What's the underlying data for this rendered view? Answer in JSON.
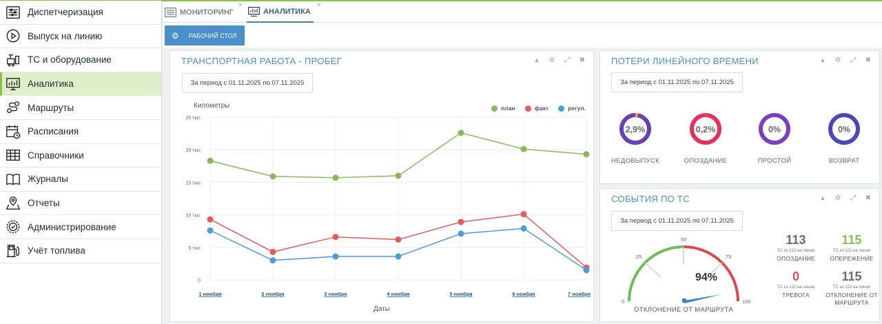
{
  "sidebar": {
    "items": [
      {
        "label": "Диспетчеризация",
        "icon": "dispatch-icon"
      },
      {
        "label": "Выпуск на линию",
        "icon": "play-circle-icon"
      },
      {
        "label": "ТС и оборудование",
        "icon": "vehicle-equipment-icon"
      },
      {
        "label": "Аналитика",
        "icon": "analytics-monitor-icon",
        "active": true
      },
      {
        "label": "Маршруты",
        "icon": "route-icon"
      },
      {
        "label": "Расписания",
        "icon": "calendar-icon"
      },
      {
        "label": "Справочники",
        "icon": "table-grid-icon"
      },
      {
        "label": "Журналы",
        "icon": "book-icon"
      },
      {
        "label": "Отчеты",
        "icon": "map-report-icon"
      },
      {
        "label": "Администрирование",
        "icon": "gear-shield-icon"
      },
      {
        "label": "Учёт топлива",
        "icon": "fuel-pump-icon"
      }
    ]
  },
  "tabs": [
    {
      "label": "МОНИТОРИНГ",
      "close": "×"
    },
    {
      "label": "АНАЛИТИКА",
      "close": "×"
    }
  ],
  "workspace": {
    "button_label": "РАБОЧИЙ СТОЛ"
  },
  "mileage_panel": {
    "title": "ТРАНСПОРТНАЯ РАБОТА - ПРОБЕГ",
    "period": "За период с 01.11.2025 по 07.11.2025",
    "chart_data": {
      "type": "line",
      "ylabel": "Километры",
      "xlabel": "Даты",
      "categories": [
        "1 ноября",
        "2 ноября",
        "3 ноября",
        "4 ноября",
        "5 ноября",
        "6 ноября",
        "7 ноября"
      ],
      "y_ticks": [
        "0",
        "5 тыс",
        "10 тыс",
        "15 тыс",
        "20 тыс",
        "25 тыс"
      ],
      "ylim": [
        0,
        25000
      ],
      "grid": true,
      "legend_position": "top-right",
      "series": [
        {
          "name": "план",
          "color": "#8cb85c",
          "values": [
            18300,
            15900,
            15700,
            16000,
            22600,
            20100,
            19300
          ]
        },
        {
          "name": "факт",
          "color": "#e85a5e",
          "values": [
            9300,
            4300,
            6600,
            6200,
            8900,
            10100,
            1900
          ]
        },
        {
          "name": "регул.",
          "color": "#4a9ee0",
          "values": [
            7600,
            3000,
            3600,
            3600,
            7100,
            7900,
            1500
          ]
        }
      ]
    }
  },
  "losses_panel": {
    "title": "ПОТЕРИ ЛИНЕЙНОГО ВРЕМЕНИ",
    "period": "За период с 01.11.2025 по 07.11.2025",
    "donuts": [
      {
        "value_label": "2,9%",
        "value": 2.9,
        "label": "НЕДОВЫПУСК",
        "color": "#6a3fb5",
        "accent": "#f2a03d"
      },
      {
        "value_label": "0,2%",
        "value": 0.2,
        "label": "ОПОЗДАНИЕ",
        "color": "#e8305e",
        "accent": "#f2a03d"
      },
      {
        "value_label": "0%",
        "value": 0,
        "label": "ПРОСТОЙ",
        "color": "#7b3fbf",
        "accent": "#f2a03d"
      },
      {
        "value_label": "0%",
        "value": 0,
        "label": "ВОЗВРАТ",
        "color": "#4b47b8",
        "accent": "#f2a03d"
      }
    ]
  },
  "events_panel": {
    "title": "СОБЫТИЯ ПО ТС",
    "period": "За период с 01.11.2025 по 07.11.2025",
    "gauge": {
      "value": 94,
      "value_label": "94%",
      "ticks": [
        "0",
        "25",
        "50",
        "75",
        "100"
      ],
      "label": "ОТКЛОНЕНИЕ ОТ МАРШРУТА"
    },
    "stats": [
      {
        "value": "113",
        "sub": "ТС из 122 на линии",
        "label": "ОПОЗДАНИЕ",
        "color": "#6d6d6d"
      },
      {
        "value": "115",
        "sub": "ТС из 122 на линии",
        "label": "ОПЕРЕЖЕНИЕ",
        "color": "#8cc152"
      },
      {
        "value": "0",
        "sub": "ТС из 122 на линии",
        "label": "ТРЕВОГА",
        "color": "#e8505b"
      },
      {
        "value": "115",
        "sub": "ТС из 122 на линии",
        "label": "ОТКЛОНЕНИЕ ОТ МАРШРУТА",
        "color": "#6d6d6d"
      }
    ]
  },
  "panel_controls": {
    "collapse": "▴",
    "settings": "⚙",
    "expand": "⤢",
    "close": "✖"
  }
}
